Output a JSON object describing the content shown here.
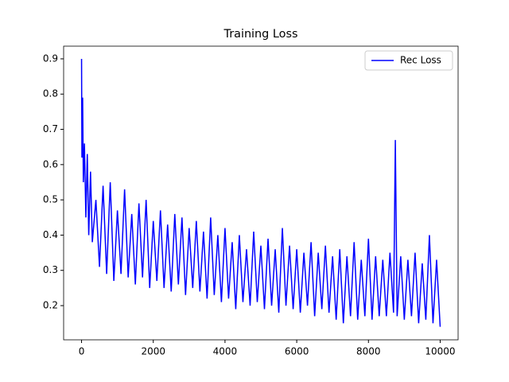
{
  "chart_data": {
    "type": "line",
    "title": "Training Loss",
    "x": [
      0,
      10,
      30,
      50,
      80,
      120,
      160,
      200,
      250,
      300,
      400,
      500,
      600,
      700,
      800,
      900,
      1000,
      1100,
      1200,
      1300,
      1400,
      1500,
      1600,
      1700,
      1800,
      1900,
      2000,
      2100,
      2200,
      2300,
      2400,
      2500,
      2600,
      2700,
      2800,
      2900,
      3000,
      3100,
      3200,
      3300,
      3400,
      3500,
      3600,
      3700,
      3800,
      3900,
      4000,
      4100,
      4200,
      4300,
      4400,
      4500,
      4600,
      4700,
      4800,
      4900,
      5000,
      5100,
      5200,
      5300,
      5400,
      5500,
      5600,
      5700,
      5800,
      5900,
      6000,
      6100,
      6200,
      6300,
      6400,
      6500,
      6600,
      6700,
      6800,
      6900,
      7000,
      7100,
      7200,
      7300,
      7400,
      7500,
      7600,
      7700,
      7800,
      7900,
      8000,
      8100,
      8200,
      8300,
      8400,
      8500,
      8600,
      8700,
      8750,
      8800,
      8900,
      9000,
      9100,
      9200,
      9300,
      9400,
      9500,
      9600,
      9700,
      9800,
      9900,
      10000
    ],
    "series": [
      {
        "name": "Rec Loss",
        "color": "#0000ff",
        "values": [
          0.9,
          0.62,
          0.79,
          0.55,
          0.66,
          0.45,
          0.63,
          0.4,
          0.58,
          0.38,
          0.5,
          0.31,
          0.54,
          0.29,
          0.55,
          0.27,
          0.47,
          0.29,
          0.53,
          0.28,
          0.46,
          0.26,
          0.49,
          0.28,
          0.5,
          0.25,
          0.44,
          0.27,
          0.47,
          0.25,
          0.43,
          0.24,
          0.46,
          0.26,
          0.45,
          0.23,
          0.42,
          0.25,
          0.44,
          0.24,
          0.41,
          0.22,
          0.45,
          0.23,
          0.4,
          0.21,
          0.42,
          0.22,
          0.38,
          0.19,
          0.4,
          0.21,
          0.36,
          0.2,
          0.41,
          0.21,
          0.37,
          0.19,
          0.39,
          0.2,
          0.36,
          0.18,
          0.42,
          0.2,
          0.37,
          0.19,
          0.36,
          0.18,
          0.35,
          0.2,
          0.38,
          0.17,
          0.35,
          0.19,
          0.37,
          0.18,
          0.34,
          0.16,
          0.36,
          0.15,
          0.34,
          0.17,
          0.38,
          0.16,
          0.33,
          0.17,
          0.39,
          0.16,
          0.34,
          0.17,
          0.33,
          0.17,
          0.35,
          0.18,
          0.67,
          0.17,
          0.34,
          0.16,
          0.33,
          0.17,
          0.35,
          0.15,
          0.32,
          0.16,
          0.4,
          0.15,
          0.33,
          0.14
        ]
      }
    ],
    "xlim": [
      -500,
      10500
    ],
    "ylim": [
      0.103,
      0.936
    ],
    "xticks": [
      0,
      2000,
      4000,
      6000,
      8000,
      10000
    ],
    "yticks": [
      0.2,
      0.3,
      0.4,
      0.5,
      0.6,
      0.7,
      0.8,
      0.9
    ],
    "legend": "upper right"
  }
}
